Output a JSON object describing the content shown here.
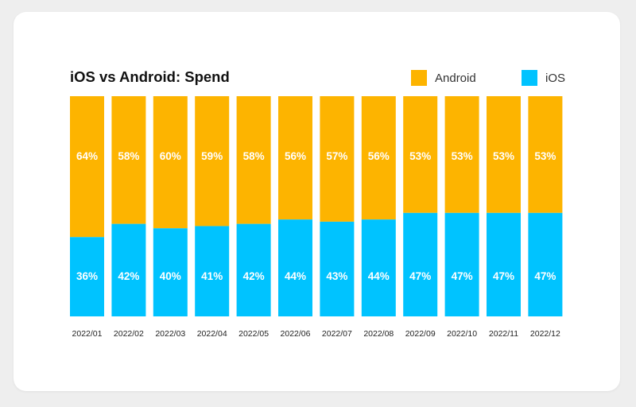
{
  "colors": {
    "android": "#FDB400",
    "ios": "#00C3FF"
  },
  "chart_data": {
    "type": "bar",
    "stacked": true,
    "title": "iOS vs Android: Spend",
    "categories": [
      "2022/01",
      "2022/02",
      "2022/03",
      "2022/04",
      "2022/05",
      "2022/06",
      "2022/07",
      "2022/08",
      "2022/09",
      "2022/10",
      "2022/11",
      "2022/12"
    ],
    "series": [
      {
        "name": "iOS",
        "color": "#00C3FF",
        "values": [
          36,
          42,
          40,
          41,
          42,
          44,
          43,
          44,
          47,
          47,
          47,
          47
        ],
        "labels": [
          "36%",
          "42%",
          "40%",
          "41%",
          "42%",
          "44%",
          "43%",
          "44%",
          "47%",
          "47%",
          "47%",
          "47%"
        ]
      },
      {
        "name": "Android",
        "color": "#FDB400",
        "values": [
          64,
          58,
          60,
          59,
          58,
          56,
          57,
          56,
          53,
          53,
          53,
          53
        ],
        "labels": [
          "64%",
          "58%",
          "60%",
          "59%",
          "58%",
          "56%",
          "57%",
          "56%",
          "53%",
          "53%",
          "53%",
          "53%"
        ]
      }
    ],
    "ylim": [
      0,
      100
    ],
    "legend": [
      "Android",
      "iOS"
    ],
    "legend_position": "top-right",
    "grid": false
  }
}
